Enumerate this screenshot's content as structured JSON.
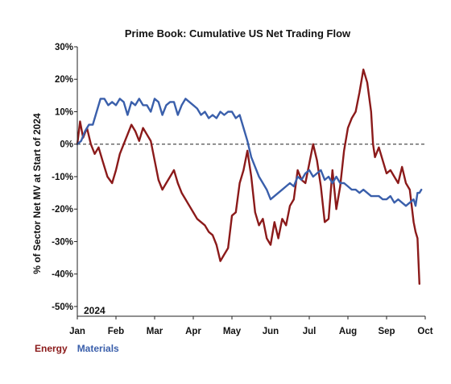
{
  "chart_data": {
    "type": "line",
    "title": "Prime Book: Cumulative US Net Trading Flow",
    "xlabel": "",
    "ylabel": "% of Sector Net MV at Start of 2024",
    "annotation": "2024",
    "x_ticks": [
      "Jan",
      "Feb",
      "Mar",
      "Apr",
      "May",
      "Jun",
      "Jul",
      "Aug",
      "Sep",
      "Oct"
    ],
    "y_ticks": [
      "-50%",
      "-40%",
      "-30%",
      "-20%",
      "-10%",
      "0%",
      "10%",
      "20%",
      "30%"
    ],
    "ylim": [
      -53,
      30
    ],
    "xlim": [
      0,
      9
    ],
    "zero_line": "dashed",
    "legend_position": "bottom-left",
    "series": [
      {
        "name": "Energy",
        "color": "#8b1a1a",
        "points": [
          [
            0.0,
            0
          ],
          [
            0.07,
            7
          ],
          [
            0.15,
            2
          ],
          [
            0.25,
            5
          ],
          [
            0.35,
            0
          ],
          [
            0.45,
            -3
          ],
          [
            0.55,
            -1
          ],
          [
            0.65,
            -5
          ],
          [
            0.78,
            -10
          ],
          [
            0.9,
            -12
          ],
          [
            1.0,
            -8
          ],
          [
            1.1,
            -3
          ],
          [
            1.2,
            0
          ],
          [
            1.3,
            3
          ],
          [
            1.4,
            6
          ],
          [
            1.5,
            4
          ],
          [
            1.6,
            1
          ],
          [
            1.7,
            5
          ],
          [
            1.8,
            3
          ],
          [
            1.9,
            1
          ],
          [
            2.0,
            -5
          ],
          [
            2.1,
            -11
          ],
          [
            2.2,
            -14
          ],
          [
            2.3,
            -12
          ],
          [
            2.4,
            -10
          ],
          [
            2.5,
            -8
          ],
          [
            2.6,
            -12
          ],
          [
            2.7,
            -15
          ],
          [
            2.8,
            -17
          ],
          [
            2.9,
            -19
          ],
          [
            3.0,
            -21
          ],
          [
            3.1,
            -23
          ],
          [
            3.2,
            -24
          ],
          [
            3.3,
            -25
          ],
          [
            3.4,
            -27
          ],
          [
            3.5,
            -28
          ],
          [
            3.6,
            -31
          ],
          [
            3.7,
            -36
          ],
          [
            3.8,
            -34
          ],
          [
            3.9,
            -32
          ],
          [
            4.0,
            -22
          ],
          [
            4.1,
            -21
          ],
          [
            4.2,
            -12
          ],
          [
            4.3,
            -8
          ],
          [
            4.4,
            -2
          ],
          [
            4.5,
            -10
          ],
          [
            4.6,
            -21
          ],
          [
            4.7,
            -25
          ],
          [
            4.8,
            -23
          ],
          [
            4.9,
            -29
          ],
          [
            5.0,
            -31
          ],
          [
            5.1,
            -24
          ],
          [
            5.2,
            -29
          ],
          [
            5.3,
            -23
          ],
          [
            5.4,
            -25
          ],
          [
            5.5,
            -19
          ],
          [
            5.6,
            -17
          ],
          [
            5.7,
            -8
          ],
          [
            5.8,
            -11
          ],
          [
            5.9,
            -12
          ],
          [
            6.0,
            -6
          ],
          [
            6.1,
            0
          ],
          [
            6.2,
            -5
          ],
          [
            6.3,
            -13
          ],
          [
            6.4,
            -24
          ],
          [
            6.5,
            -23
          ],
          [
            6.6,
            -8
          ],
          [
            6.7,
            -20
          ],
          [
            6.8,
            -13
          ],
          [
            6.9,
            -2
          ],
          [
            7.0,
            5
          ],
          [
            7.1,
            8
          ],
          [
            7.2,
            10
          ],
          [
            7.3,
            16
          ],
          [
            7.4,
            23
          ],
          [
            7.5,
            19
          ],
          [
            7.6,
            10
          ],
          [
            7.65,
            0
          ],
          [
            7.7,
            -4
          ],
          [
            7.8,
            -1
          ],
          [
            7.9,
            -5
          ],
          [
            8.0,
            -9
          ],
          [
            8.1,
            -8
          ],
          [
            8.2,
            -10
          ],
          [
            8.3,
            -12
          ],
          [
            8.4,
            -7
          ],
          [
            8.5,
            -12
          ],
          [
            8.6,
            -14
          ],
          [
            8.7,
            -24
          ],
          [
            8.75,
            -27
          ],
          [
            8.8,
            -29
          ],
          [
            8.85,
            -43
          ]
        ]
      },
      {
        "name": "Materials",
        "color": "#3a5fab",
        "points": [
          [
            0.0,
            0
          ],
          [
            0.1,
            1
          ],
          [
            0.2,
            4
          ],
          [
            0.3,
            6
          ],
          [
            0.4,
            6
          ],
          [
            0.5,
            10
          ],
          [
            0.6,
            14
          ],
          [
            0.7,
            14
          ],
          [
            0.8,
            12
          ],
          [
            0.9,
            13
          ],
          [
            1.0,
            12
          ],
          [
            1.1,
            14
          ],
          [
            1.2,
            13
          ],
          [
            1.3,
            9
          ],
          [
            1.4,
            13
          ],
          [
            1.5,
            12
          ],
          [
            1.6,
            14
          ],
          [
            1.7,
            12
          ],
          [
            1.8,
            12
          ],
          [
            1.9,
            10
          ],
          [
            2.0,
            14
          ],
          [
            2.1,
            13
          ],
          [
            2.2,
            9
          ],
          [
            2.3,
            12
          ],
          [
            2.4,
            13
          ],
          [
            2.5,
            13
          ],
          [
            2.6,
            9
          ],
          [
            2.7,
            12
          ],
          [
            2.8,
            14
          ],
          [
            2.9,
            13
          ],
          [
            3.0,
            12
          ],
          [
            3.1,
            11
          ],
          [
            3.2,
            9
          ],
          [
            3.3,
            10
          ],
          [
            3.4,
            8
          ],
          [
            3.5,
            9
          ],
          [
            3.6,
            8
          ],
          [
            3.7,
            10
          ],
          [
            3.8,
            9
          ],
          [
            3.9,
            10
          ],
          [
            4.0,
            10
          ],
          [
            4.1,
            8
          ],
          [
            4.2,
            9
          ],
          [
            4.3,
            5
          ],
          [
            4.4,
            1
          ],
          [
            4.5,
            -4
          ],
          [
            4.6,
            -7
          ],
          [
            4.7,
            -10
          ],
          [
            4.8,
            -12
          ],
          [
            4.9,
            -14
          ],
          [
            5.0,
            -17
          ],
          [
            5.1,
            -16
          ],
          [
            5.2,
            -15
          ],
          [
            5.3,
            -14
          ],
          [
            5.4,
            -13
          ],
          [
            5.5,
            -12
          ],
          [
            5.6,
            -13
          ],
          [
            5.7,
            -10
          ],
          [
            5.8,
            -11
          ],
          [
            5.9,
            -9
          ],
          [
            6.0,
            -8
          ],
          [
            6.1,
            -10
          ],
          [
            6.2,
            -9
          ],
          [
            6.3,
            -8
          ],
          [
            6.4,
            -11
          ],
          [
            6.5,
            -10
          ],
          [
            6.6,
            -12
          ],
          [
            6.7,
            -10
          ],
          [
            6.8,
            -12
          ],
          [
            6.9,
            -12
          ],
          [
            7.0,
            -13
          ],
          [
            7.1,
            -14
          ],
          [
            7.2,
            -14
          ],
          [
            7.3,
            -15
          ],
          [
            7.4,
            -14
          ],
          [
            7.5,
            -15
          ],
          [
            7.6,
            -16
          ],
          [
            7.7,
            -16
          ],
          [
            7.8,
            -16
          ],
          [
            7.9,
            -17
          ],
          [
            8.0,
            -17
          ],
          [
            8.1,
            -16
          ],
          [
            8.2,
            -18
          ],
          [
            8.3,
            -17
          ],
          [
            8.4,
            -18
          ],
          [
            8.5,
            -19
          ],
          [
            8.6,
            -18
          ],
          [
            8.7,
            -17
          ],
          [
            8.75,
            -19
          ],
          [
            8.8,
            -15
          ],
          [
            8.85,
            -15
          ],
          [
            8.9,
            -14
          ]
        ]
      }
    ]
  }
}
